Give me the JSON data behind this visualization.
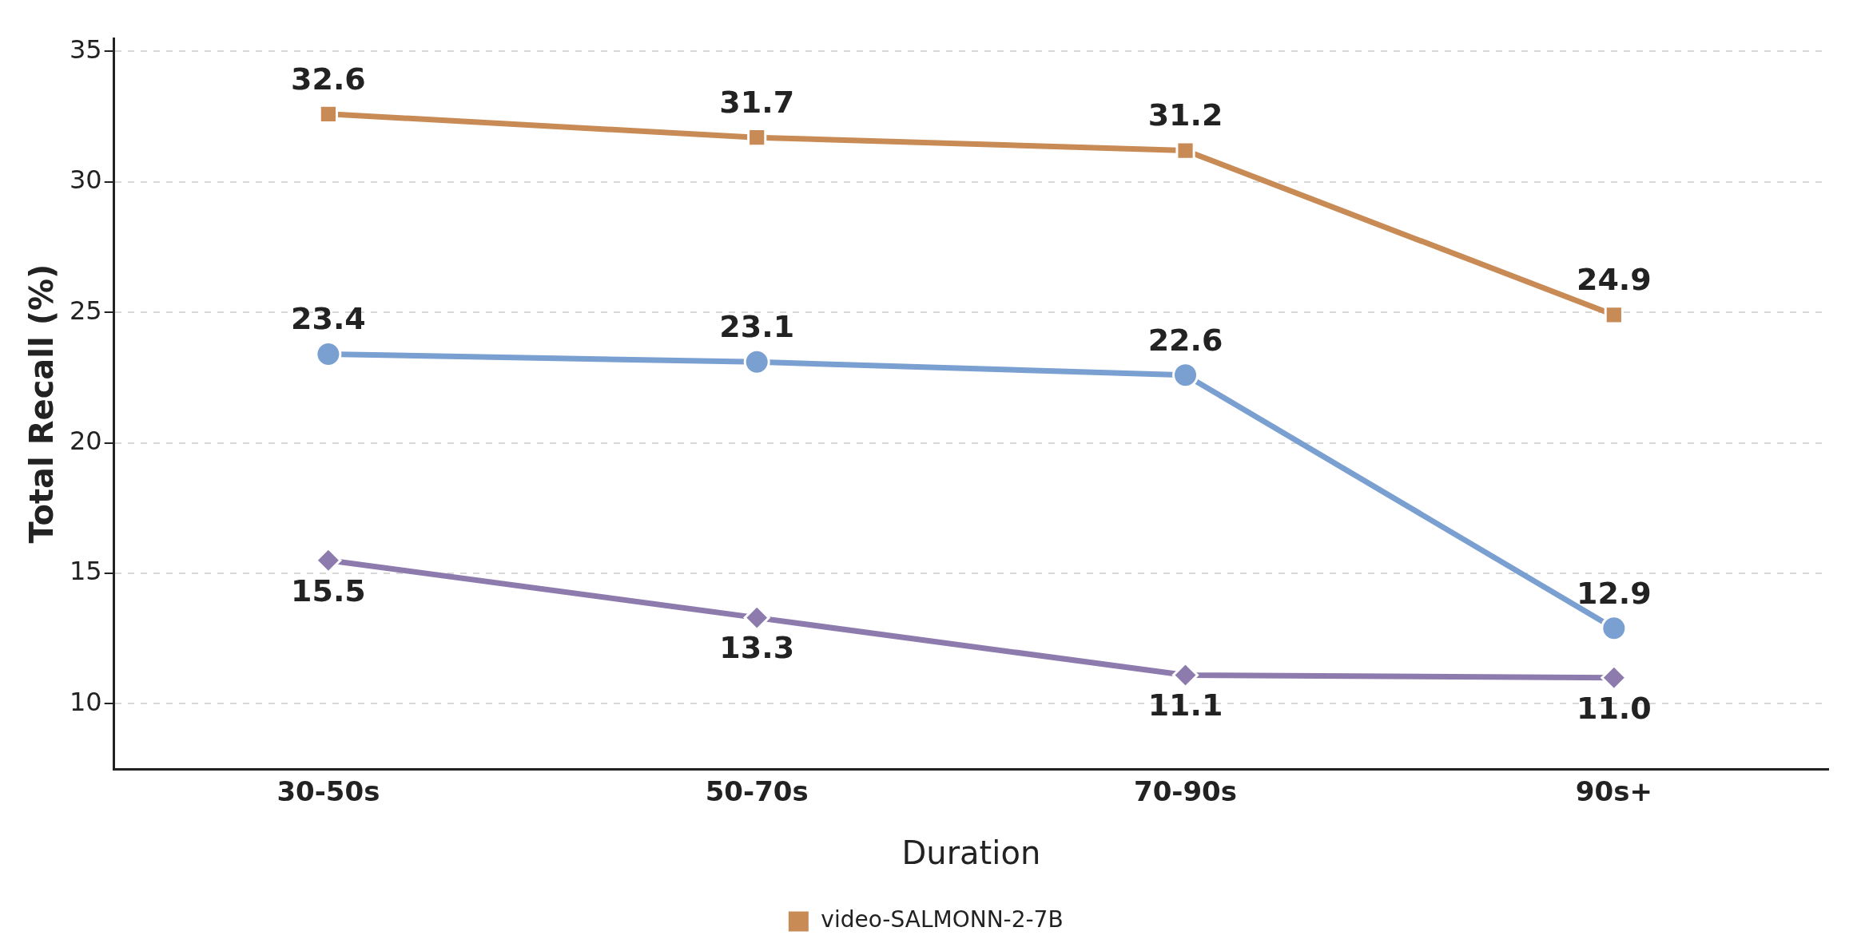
{
  "chart_data": {
    "type": "line",
    "xlabel": "Duration",
    "ylabel": "Total Recall (%)",
    "categories": [
      "30-50s",
      "50-70s",
      "70-90s",
      "90s+"
    ],
    "series": [
      {
        "name": "video-SALMONN-2-7B",
        "color": "#c98b55",
        "marker": "square",
        "values": [
          32.6,
          31.7,
          31.2,
          24.9
        ],
        "value_labels": [
          "32.6",
          "31.7",
          "31.2",
          "24.9"
        ]
      },
      {
        "color": "#7a9fd1",
        "marker": "circle",
        "values": [
          23.4,
          23.1,
          22.6,
          12.9
        ],
        "value_labels": [
          "23.4",
          "23.1",
          "22.6",
          "12.9"
        ]
      },
      {
        "color": "#8e7bae",
        "marker": "diamond",
        "values": [
          15.5,
          13.3,
          11.1,
          11.0
        ],
        "value_labels": [
          "15.5",
          "13.3",
          "11.1",
          "11.0"
        ]
      }
    ],
    "ylim": [
      7.5,
      35.5
    ],
    "yticks": [
      10,
      15,
      20,
      25,
      30,
      35
    ],
    "grid": "y",
    "legend": "bottom",
    "line_style": "solid"
  }
}
